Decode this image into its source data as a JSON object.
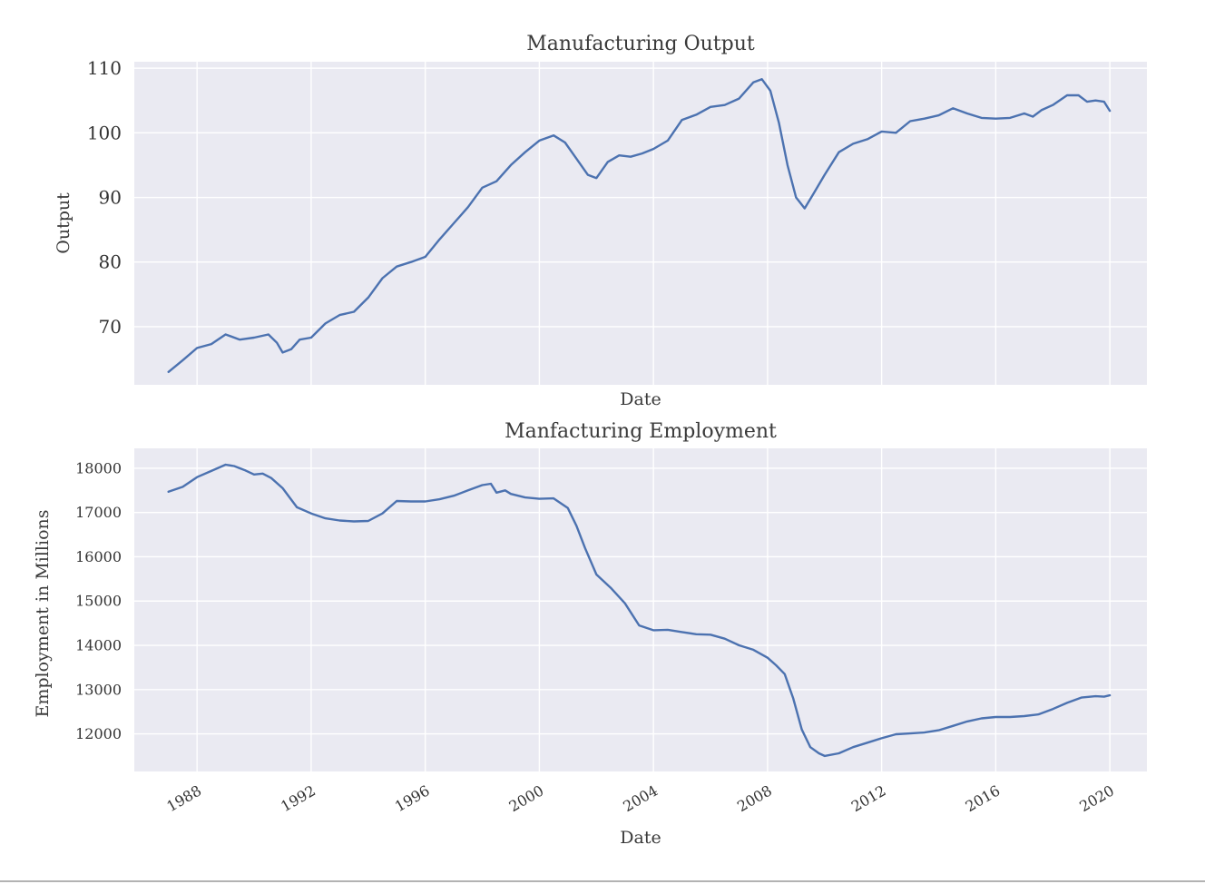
{
  "chart_data": [
    {
      "type": "line",
      "title": "Manufacturing Output",
      "xlabel": "Date",
      "ylabel": "Output",
      "xlim": [
        1985.8,
        2021.3
      ],
      "ylim": [
        61,
        111
      ],
      "yticks": [
        "70",
        "80",
        "90",
        "100",
        "110"
      ],
      "xticks_labeled": false,
      "grid": true,
      "line_color": "#4c72b0",
      "background": "#eaeaf2",
      "series": [
        {
          "x": [
            1987.0,
            1987.5,
            1988.0,
            1988.5,
            1989.0,
            1989.5,
            1990.0,
            1990.5,
            1990.8,
            1991.0,
            1991.3,
            1991.6,
            1992.0,
            1992.5,
            1993.0,
            1993.5,
            1994.0,
            1994.5,
            1995.0,
            1995.5,
            1996.0,
            1996.5,
            1997.0,
            1997.5,
            1998.0,
            1998.5,
            1999.0,
            1999.5,
            2000.0,
            2000.5,
            2000.9,
            2001.3,
            2001.7,
            2002.0,
            2002.4,
            2002.8,
            2003.2,
            2003.6,
            2004.0,
            2004.5,
            2005.0,
            2005.5,
            2006.0,
            2006.5,
            2007.0,
            2007.5,
            2007.8,
            2008.1,
            2008.4,
            2008.7,
            2009.0,
            2009.3,
            2009.6,
            2010.0,
            2010.5,
            2011.0,
            2011.5,
            2012.0,
            2012.5,
            2013.0,
            2013.5,
            2014.0,
            2014.5,
            2015.0,
            2015.5,
            2016.0,
            2016.5,
            2017.0,
            2017.3,
            2017.6,
            2018.0,
            2018.5,
            2018.9,
            2019.2,
            2019.5,
            2019.8,
            2020.0
          ],
          "y": [
            63.0,
            64.8,
            66.7,
            67.3,
            68.8,
            68.0,
            68.3,
            68.8,
            67.5,
            66.0,
            66.5,
            68.0,
            68.3,
            70.5,
            71.8,
            72.3,
            74.5,
            77.5,
            79.3,
            80.0,
            80.8,
            83.5,
            86.0,
            88.5,
            91.5,
            92.5,
            95.0,
            97.0,
            98.8,
            99.6,
            98.5,
            96.0,
            93.5,
            93.0,
            95.5,
            96.5,
            96.3,
            96.8,
            97.5,
            98.8,
            102.0,
            102.8,
            104.0,
            104.3,
            105.3,
            107.8,
            108.3,
            106.5,
            101.5,
            95.0,
            90.0,
            88.3,
            90.5,
            93.5,
            97.0,
            98.3,
            99.0,
            100.2,
            100.0,
            101.8,
            102.2,
            102.7,
            103.8,
            103.0,
            102.3,
            102.2,
            102.3,
            103.0,
            102.5,
            103.5,
            104.3,
            105.8,
            105.8,
            104.8,
            105.0,
            104.8,
            103.4
          ]
        }
      ]
    },
    {
      "type": "line",
      "title": "Manfacturing Employment",
      "xlabel": "Date",
      "ylabel": "Employment in Millions",
      "xlim": [
        1985.8,
        2021.3
      ],
      "ylim": [
        11150,
        18450
      ],
      "yticks": [
        "12000",
        "13000",
        "14000",
        "15000",
        "16000",
        "17000",
        "18000"
      ],
      "xticks": [
        "1988",
        "1992",
        "1996",
        "2000",
        "2004",
        "2008",
        "2012",
        "2016",
        "2020"
      ],
      "grid": true,
      "line_color": "#4c72b0",
      "background": "#eaeaf2",
      "series": [
        {
          "x": [
            1987.0,
            1987.5,
            1988.0,
            1988.5,
            1989.0,
            1989.3,
            1989.7,
            1990.0,
            1990.3,
            1990.6,
            1991.0,
            1991.5,
            1992.0,
            1992.5,
            1993.0,
            1993.5,
            1994.0,
            1994.5,
            1995.0,
            1995.5,
            1996.0,
            1996.5,
            1997.0,
            1997.5,
            1998.0,
            1998.3,
            1998.5,
            1998.8,
            1999.0,
            1999.5,
            2000.0,
            2000.5,
            2001.0,
            2001.3,
            2001.6,
            2002.0,
            2002.5,
            2003.0,
            2003.5,
            2004.0,
            2004.5,
            2005.0,
            2005.5,
            2006.0,
            2006.5,
            2007.0,
            2007.5,
            2008.0,
            2008.3,
            2008.6,
            2008.9,
            2009.2,
            2009.5,
            2009.8,
            2010.0,
            2010.5,
            2011.0,
            2011.5,
            2012.0,
            2012.5,
            2013.0,
            2013.5,
            2014.0,
            2014.5,
            2015.0,
            2015.5,
            2016.0,
            2016.5,
            2017.0,
            2017.5,
            2018.0,
            2018.5,
            2019.0,
            2019.5,
            2019.8,
            2020.0
          ],
          "y": [
            17470,
            17580,
            17800,
            17940,
            18080,
            18050,
            17950,
            17860,
            17880,
            17780,
            17550,
            17120,
            16980,
            16870,
            16820,
            16800,
            16810,
            16980,
            17260,
            17250,
            17250,
            17300,
            17380,
            17500,
            17620,
            17650,
            17450,
            17500,
            17420,
            17340,
            17310,
            17320,
            17100,
            16700,
            16200,
            15600,
            15300,
            14950,
            14450,
            14340,
            14350,
            14300,
            14250,
            14240,
            14150,
            14000,
            13900,
            13720,
            13550,
            13350,
            12800,
            12100,
            11700,
            11560,
            11500,
            11560,
            11700,
            11800,
            11900,
            11990,
            12010,
            12030,
            12080,
            12180,
            12280,
            12350,
            12380,
            12380,
            12400,
            12440,
            12560,
            12700,
            12820,
            12850,
            12840,
            12870
          ]
        }
      ]
    }
  ]
}
